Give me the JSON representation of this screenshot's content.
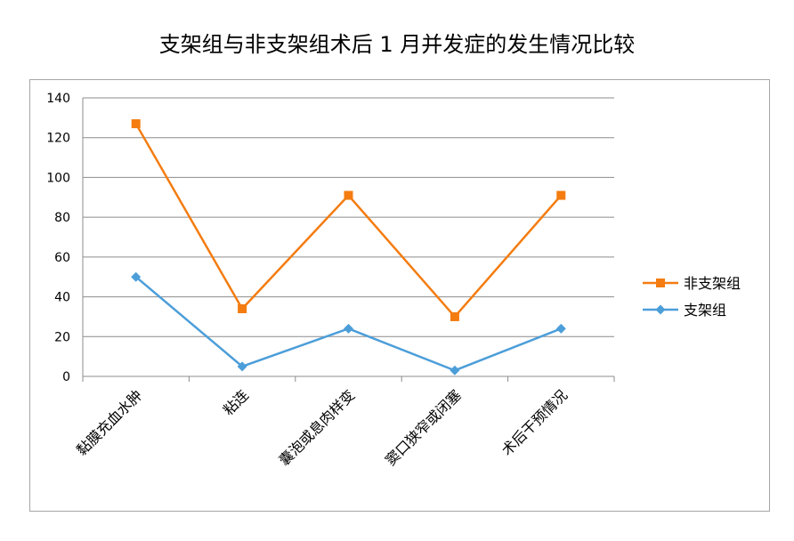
{
  "chart_data": {
    "type": "line",
    "title": "支架组与非支架组术后 1 月并发症的发生情况比较",
    "categories": [
      "黏膜充血水肿",
      "粘连",
      "囊泡或息肉样变",
      "窦口狭窄或闭塞",
      "术后干预情况"
    ],
    "series": [
      {
        "name": "非支架组",
        "values": [
          127,
          34,
          91,
          30,
          91
        ],
        "color": "#F47C10",
        "marker": "square"
      },
      {
        "name": "支架组",
        "values": [
          50,
          5,
          24,
          3,
          24
        ],
        "color": "#4C9ED9",
        "marker": "diamond"
      }
    ],
    "ylim": [
      0,
      140
    ],
    "yticks": [
      0,
      20,
      40,
      60,
      80,
      100,
      120,
      140
    ],
    "grid": true,
    "legend": "right"
  }
}
